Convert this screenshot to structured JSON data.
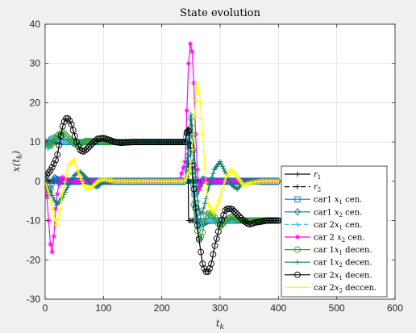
{
  "chart_data": {
    "type": "line",
    "title": "State evolution",
    "xlabel_base": "t",
    "xlabel_sub": "k",
    "ylabel_base": "x(t",
    "ylabel_sub": "k",
    "ylabel_close": ")",
    "xlim": [
      0,
      600
    ],
    "ylim": [
      -30,
      40
    ],
    "xticks": [
      0,
      100,
      200,
      300,
      400,
      500,
      600
    ],
    "yticks": [
      -30,
      -20,
      -10,
      0,
      10,
      20,
      30,
      40
    ],
    "grid": true,
    "legend_position": "bottom-right",
    "series": [
      {
        "name": "r₁",
        "legend": {
          "base": "r",
          "sub": "1"
        },
        "color": "#000000",
        "dash": "",
        "marker": "plus",
        "x": [
          0,
          245,
          246,
          400
        ],
        "y": [
          10,
          10,
          -10,
          -10
        ]
      },
      {
        "name": "r₂",
        "legend": {
          "base": "r",
          "sub": "2"
        },
        "color": "#000000",
        "dash": "6,4",
        "marker": "plus",
        "x": [
          0,
          400
        ],
        "y": [
          0,
          0
        ]
      },
      {
        "name": "car1 x₁ cen.",
        "legend": {
          "pre": "car1 ",
          "base": "x",
          "sub": "1",
          "post": " cen."
        },
        "color": "#0072bd",
        "dash": "",
        "marker": "square",
        "x": [
          0,
          5,
          10,
          15,
          20,
          25,
          30,
          40,
          60,
          100,
          200,
          240,
          245,
          250,
          255,
          260,
          265,
          270,
          280,
          300,
          330,
          400
        ],
        "y": [
          10,
          9,
          10.5,
          11,
          10.8,
          10.3,
          10,
          10,
          10,
          10,
          10,
          10,
          13,
          6,
          -2,
          -8,
          -11,
          -10.5,
          -10,
          -10,
          -10,
          -10
        ]
      },
      {
        "name": "car1 x₂ cen.",
        "legend": {
          "pre": "car1 ",
          "base": "x",
          "sub": "2",
          "post": " cen."
        },
        "color": "#0072bd",
        "dash": "",
        "marker": "diamond",
        "x": [
          0,
          5,
          10,
          15,
          20,
          30,
          40,
          60,
          100,
          200,
          240,
          245,
          250,
          255,
          260,
          265,
          270,
          280,
          300,
          330,
          400
        ],
        "y": [
          0,
          -4,
          -2,
          1,
          0.5,
          0,
          0,
          0,
          0,
          0,
          0,
          8,
          16,
          6,
          -3,
          -1,
          0.5,
          0,
          0,
          0,
          0
        ]
      },
      {
        "name": "car 2x₁ cen.",
        "legend": {
          "pre": "car 2",
          "base": "x",
          "sub": "1",
          "post": " cen."
        },
        "color": "#4dbeee",
        "dash": "5,3",
        "marker": "star",
        "x": [
          0,
          5,
          10,
          15,
          20,
          25,
          30,
          40,
          60,
          100,
          200,
          240,
          245,
          250,
          255,
          260,
          265,
          270,
          280,
          300,
          330,
          400
        ],
        "y": [
          10,
          8,
          11,
          11.5,
          10.5,
          10,
          10,
          10,
          10,
          10,
          10,
          10,
          14,
          8,
          -4,
          -10,
          -12,
          -10,
          -10,
          -10,
          -10,
          -10
        ]
      },
      {
        "name": "car 2 x₂ cen.",
        "legend": {
          "pre": "car 2 ",
          "base": "x",
          "sub": "2",
          "post": " cen."
        },
        "color": "#ff00ff",
        "dash": "",
        "marker": "asterisk",
        "x": [
          0,
          3,
          6,
          9,
          12,
          15,
          18,
          22,
          26,
          30,
          40,
          60,
          100,
          200,
          230,
          240,
          243,
          246,
          249,
          252,
          255,
          258,
          261,
          264,
          267,
          270,
          275,
          280,
          290,
          300,
          330,
          400
        ],
        "y": [
          0,
          -4,
          -10,
          -16,
          -18,
          -14,
          -7,
          -2,
          0.5,
          1,
          0,
          0,
          0,
          0,
          0,
          5,
          18,
          30,
          35,
          33,
          25,
          12,
          3,
          -2,
          -1,
          0,
          0.5,
          0,
          0,
          0,
          0,
          0
        ]
      },
      {
        "name": "car 1x₁ decen.",
        "legend": {
          "pre": "car 1",
          "base": "x",
          "sub": "1",
          "post": " decen."
        },
        "color": "#2ca02c",
        "dash": "",
        "marker": "circle",
        "x": [
          0,
          10,
          20,
          30,
          40,
          50,
          60,
          70,
          80,
          100,
          120,
          150,
          200,
          240,
          245,
          250,
          255,
          260,
          265,
          270,
          275,
          280,
          290,
          300,
          310,
          320,
          330,
          340,
          360,
          380,
          400
        ],
        "y": [
          10,
          9,
          11.5,
          12.5,
          11,
          9.5,
          9.5,
          10.3,
          10.2,
          10,
          10,
          10,
          10,
          10,
          14,
          8,
          -6,
          -12,
          -15,
          -13,
          -9,
          -8,
          -9,
          -11.5,
          -10,
          -9,
          -9.8,
          -10,
          -10,
          -10,
          -10
        ]
      },
      {
        "name": "car 1x₂ decen.",
        "legend": {
          "pre": "car 1",
          "base": "x",
          "sub": "2",
          "post": " decen."
        },
        "color": "#127a6a",
        "dash": "",
        "marker": "plus",
        "x": [
          0,
          10,
          20,
          30,
          40,
          50,
          60,
          70,
          80,
          90,
          100,
          120,
          150,
          200,
          240,
          245,
          250,
          255,
          260,
          265,
          270,
          280,
          290,
          300,
          310,
          320,
          330,
          340,
          360,
          380,
          400
        ],
        "y": [
          0,
          -3,
          -6,
          -4,
          -1,
          1.5,
          2.5,
          1,
          -1,
          -1.5,
          0,
          0,
          0,
          0,
          0,
          6,
          17,
          10,
          -3,
          -8,
          -8,
          -2,
          3,
          5,
          2,
          -1,
          -2,
          0,
          0,
          0,
          0
        ]
      },
      {
        "name": "car 2x₁ decen.",
        "legend": {
          "pre": "car 2",
          "base": "x",
          "sub": "1",
          "post": " decen."
        },
        "color": "#000000",
        "dash": "",
        "marker": "circle",
        "x": [
          0,
          10,
          20,
          25,
          30,
          35,
          40,
          45,
          50,
          55,
          60,
          65,
          70,
          80,
          90,
          100,
          110,
          120,
          130,
          150,
          200,
          240,
          245,
          250,
          255,
          260,
          265,
          270,
          275,
          280,
          285,
          290,
          300,
          310,
          320,
          330,
          340,
          350,
          360,
          380,
          400
        ],
        "y": [
          1,
          3,
          6,
          10,
          14,
          16,
          16,
          14.5,
          12,
          9.5,
          8,
          7.5,
          8,
          9.5,
          10.8,
          11,
          10.5,
          10,
          9.8,
          10,
          10,
          10,
          14,
          8,
          -2,
          -10,
          -16,
          -21,
          -23,
          -23,
          -21,
          -17,
          -11,
          -7,
          -7,
          -8.5,
          -10,
          -11,
          -10.5,
          -10,
          -10
        ]
      },
      {
        "name": "car 2x₂ decen.",
        "legend": {
          "pre": "car 2",
          "base": "x",
          "sub": "2",
          "post": " deccen."
        },
        "color": "#ffff00",
        "dash": "",
        "marker": "plus",
        "x": [
          0,
          8,
          15,
          20,
          25,
          30,
          40,
          50,
          55,
          60,
          70,
          80,
          90,
          100,
          120,
          150,
          200,
          240,
          250,
          255,
          260,
          265,
          270,
          275,
          280,
          290,
          300,
          310,
          320,
          330,
          340,
          350,
          370,
          400
        ],
        "y": [
          0,
          -4,
          -9,
          -11,
          -8,
          -3,
          4,
          5.5,
          3,
          1,
          -2,
          -1.5,
          0,
          0.5,
          0,
          0,
          0,
          0,
          4,
          14,
          25,
          22,
          12,
          1,
          -6,
          -8,
          -4,
          1,
          3,
          1,
          -1,
          -0.5,
          0,
          0
        ]
      }
    ]
  }
}
